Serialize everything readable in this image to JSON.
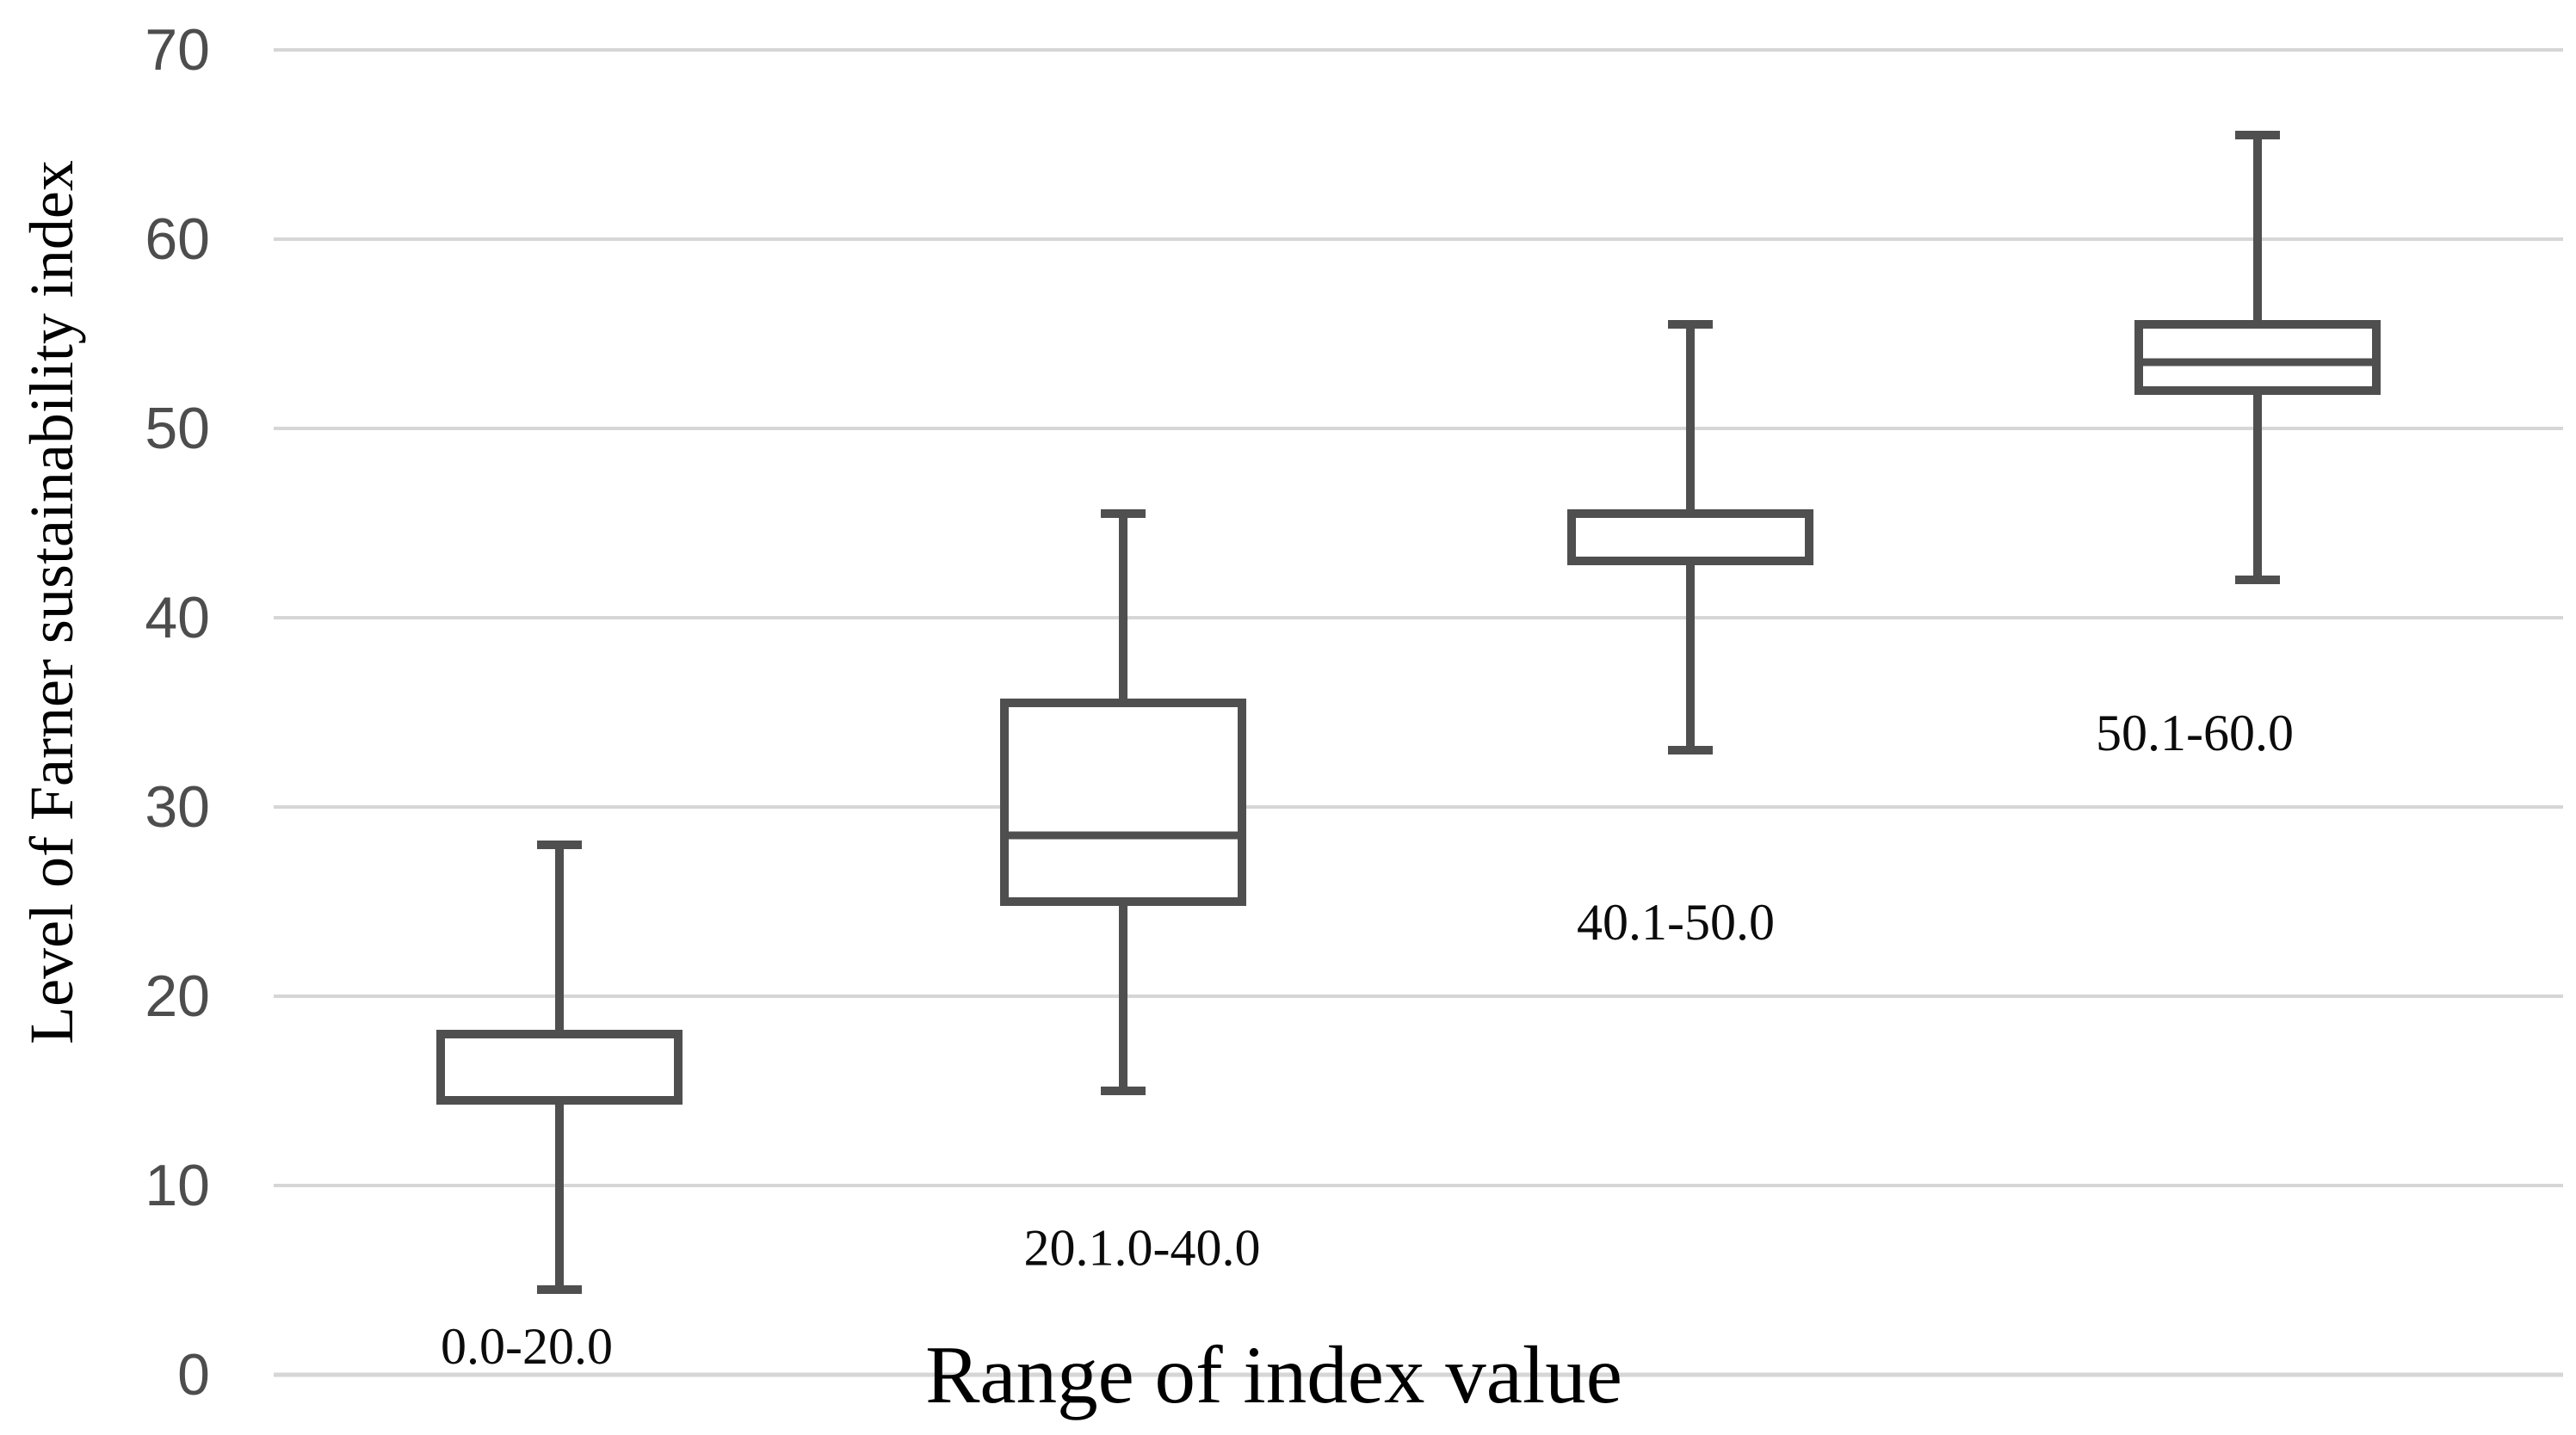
{
  "chart_data": {
    "type": "boxplot",
    "title": "",
    "xlabel": "Range of index value",
    "ylabel": "Level of Farner sustainability index",
    "ylim": [
      0,
      70
    ],
    "yticks": [
      0,
      10,
      20,
      30,
      40,
      50,
      60,
      70
    ],
    "grid": "horizontal",
    "legend": "none",
    "categories": [
      "0.0-20.0",
      "20.1.0-40.0",
      "40.1-50.0",
      "50.1-60.0"
    ],
    "series": [
      {
        "category": "0.0-20.0",
        "whisker_low": 4.5,
        "q1": 14.5,
        "median": null,
        "q3": 18,
        "whisker_high": 28,
        "label_y_value": 1.5,
        "label_x_offset": -38
      },
      {
        "category": "20.1.0-40.0",
        "whisker_low": 15,
        "q1": 25,
        "median": 28.5,
        "q3": 35.5,
        "whisker_high": 45.5,
        "label_y_value": 6.7,
        "label_x_offset": 22
      },
      {
        "category": "40.1-50.0",
        "whisker_low": 33,
        "q1": 43,
        "median": null,
        "q3": 45.5,
        "whisker_high": 55.5,
        "label_y_value": 23.9,
        "label_x_offset": -17
      },
      {
        "category": "50.1-60.0",
        "whisker_low": 42,
        "q1": 52,
        "median": 53.5,
        "q3": 55.5,
        "whisker_high": 65.5,
        "label_y_value": 33.9,
        "label_x_offset": -73
      }
    ]
  },
  "style": {
    "background": "#ffffff",
    "box_stroke": "#4f4f4f",
    "box_fill": "#ffffff",
    "grid_color": "#d6d6d6",
    "tick_label_color": "#4d4d4d",
    "text_color": "#0b0b0b",
    "title_color": "#000000"
  }
}
